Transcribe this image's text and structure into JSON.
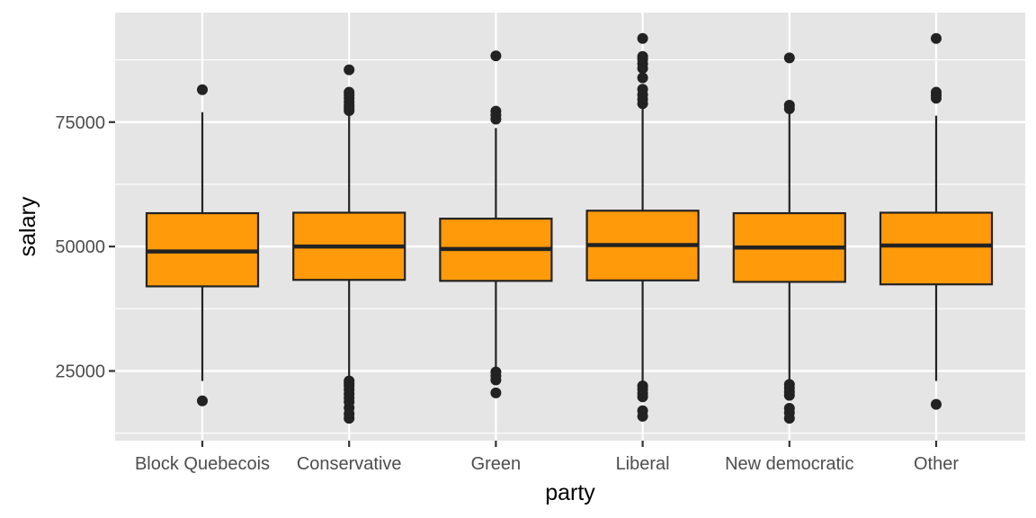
{
  "chart_data": {
    "type": "boxplot",
    "title": "",
    "xlabel": "party",
    "ylabel": "salary",
    "ylim": [
      11000,
      97000
    ],
    "y_ticks": [
      25000,
      50000,
      75000
    ],
    "y_tick_labels": [
      "25000",
      "50000",
      "75000"
    ],
    "grid": true,
    "legend": "none",
    "colors": {
      "box_fill": "#FF9A0A",
      "box_stroke": "#222222",
      "panel": "#E5E5E5",
      "grid": "#FFFFFF"
    },
    "categories": [
      "Block Quebecois",
      "Conservative",
      "Green",
      "Liberal",
      "New democratic",
      "Other"
    ],
    "boxes": [
      {
        "category": "Block Quebecois",
        "lower_whisker": 23000,
        "q1": 42000,
        "median": 49000,
        "q3": 56700,
        "upper_whisker": 77000,
        "outliers": [
          81500,
          19000
        ]
      },
      {
        "category": "Conservative",
        "lower_whisker": 23500,
        "q1": 43300,
        "median": 50000,
        "q3": 56800,
        "upper_whisker": 76800,
        "outliers": [
          85500,
          81000,
          80500,
          79800,
          79000,
          78300,
          77800,
          77300,
          23000,
          22500,
          22000,
          21200,
          20400,
          19600,
          18800,
          17600,
          16400,
          15500
        ]
      },
      {
        "category": "Green",
        "lower_whisker": 25000,
        "q1": 43100,
        "median": 49500,
        "q3": 55600,
        "upper_whisker": 73800,
        "outliers": [
          88300,
          77200,
          76400,
          75600,
          24800,
          24000,
          23200,
          20600
        ]
      },
      {
        "category": "Liberal",
        "lower_whisker": 22300,
        "q1": 43200,
        "median": 50300,
        "q3": 57200,
        "upper_whisker": 78000,
        "outliers": [
          91800,
          88200,
          87600,
          86700,
          85800,
          83900,
          81600,
          80500,
          79600,
          78700,
          22000,
          21300,
          20500,
          19800,
          17000,
          15900
        ]
      },
      {
        "category": "New democratic",
        "lower_whisker": 22600,
        "q1": 42900,
        "median": 49800,
        "q3": 56700,
        "upper_whisker": 77000,
        "outliers": [
          87900,
          78400,
          77700,
          22300,
          21600,
          20800,
          20100,
          17500,
          16600,
          15500
        ]
      },
      {
        "category": "Other",
        "lower_whisker": 23000,
        "q1": 42400,
        "median": 50200,
        "q3": 56800,
        "upper_whisker": 76300,
        "outliers": [
          91800,
          81000,
          80400,
          79800,
          18300
        ]
      }
    ]
  }
}
